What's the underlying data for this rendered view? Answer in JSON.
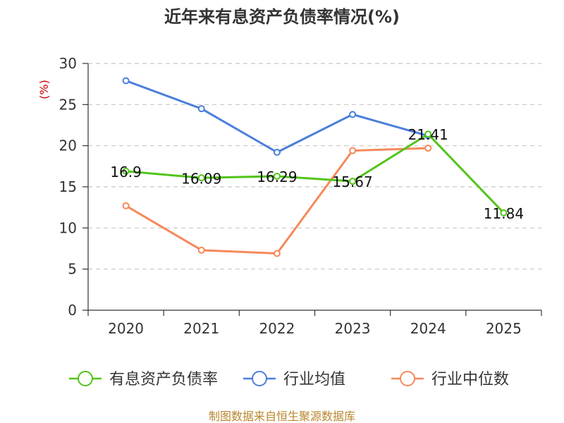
{
  "chart_data": {
    "type": "line",
    "title": "近年来有息资产负债率情况(%)",
    "ylabel": "(%)",
    "xlabel": "",
    "categories": [
      "2020",
      "2021",
      "2022",
      "2023",
      "2024",
      "2025"
    ],
    "ylim": [
      0,
      30
    ],
    "yticks": [
      "0",
      "5",
      "10",
      "15",
      "20",
      "25",
      "30"
    ],
    "grid": true,
    "legend_position": "bottom",
    "series": [
      {
        "name": "有息资产负债率",
        "color": "#52c41a",
        "values": [
          16.9,
          16.09,
          16.29,
          15.67,
          21.41,
          11.84
        ],
        "labels": [
          "16.9",
          "16.09",
          "16.29",
          "15.67",
          "21.41",
          "11.84"
        ]
      },
      {
        "name": "行业均值",
        "color": "#4a7fdc",
        "values": [
          27.9,
          24.5,
          19.2,
          23.8,
          21.2,
          null
        ],
        "labels": []
      },
      {
        "name": "行业中位数",
        "color": "#f5895a",
        "values": [
          12.7,
          7.3,
          6.9,
          19.4,
          19.7,
          null
        ],
        "labels": []
      }
    ],
    "source": "制图数据来自恒生聚源数据库"
  }
}
